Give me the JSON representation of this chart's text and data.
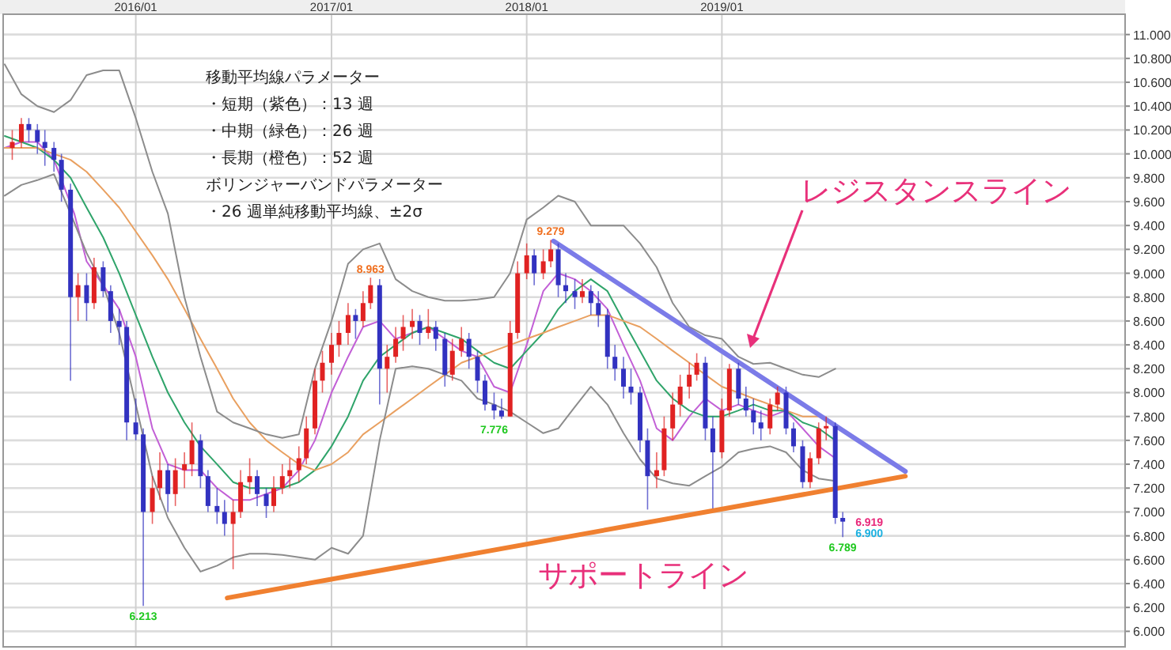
{
  "chart_data": {
    "type": "candlestick",
    "x": [
      "2015-05-15",
      "2015-06-01",
      "2015-06-15",
      "2015-07-01",
      "2015-07-15",
      "2015-08-01",
      "2015-08-15",
      "2015-09-01",
      "2015-09-15",
      "2015-10-01",
      "2015-10-15",
      "2015-11-01",
      "2015-11-15",
      "2015-12-01",
      "2015-12-15",
      "2016-01-01",
      "2016-01-15",
      "2016-02-01",
      "2016-02-15",
      "2016-03-01",
      "2016-03-15",
      "2016-04-01",
      "2016-04-15",
      "2016-05-01",
      "2016-05-15",
      "2016-06-01",
      "2016-06-15",
      "2016-07-01",
      "2016-07-15",
      "2016-08-01",
      "2016-08-15",
      "2016-09-01",
      "2016-09-15",
      "2016-10-01",
      "2016-10-15",
      "2016-11-01",
      "2016-11-15",
      "2016-12-01",
      "2016-12-15",
      "2017-01-01",
      "2017-01-15",
      "2017-02-01",
      "2017-02-15",
      "2017-03-01",
      "2017-03-15",
      "2017-04-01",
      "2017-04-15",
      "2017-05-01",
      "2017-05-15",
      "2017-06-01",
      "2017-06-15",
      "2017-07-01",
      "2017-07-15",
      "2017-08-01",
      "2017-08-15",
      "2017-09-01",
      "2017-09-15",
      "2017-10-01",
      "2017-10-15",
      "2017-11-01",
      "2017-11-15",
      "2017-12-01",
      "2017-12-15",
      "2018-01-01",
      "2018-01-15",
      "2018-02-01",
      "2018-02-15",
      "2018-03-01",
      "2018-03-15",
      "2018-04-01",
      "2018-04-15",
      "2018-05-01",
      "2018-05-15",
      "2018-06-01",
      "2018-06-15",
      "2018-07-01",
      "2018-07-15",
      "2018-08-01",
      "2018-08-15",
      "2018-09-01",
      "2018-09-15",
      "2018-10-01",
      "2018-10-15",
      "2018-11-01",
      "2018-11-15",
      "2018-12-01",
      "2018-12-15",
      "2019-01-01",
      "2019-01-15",
      "2019-02-01",
      "2019-02-15",
      "2019-03-01",
      "2019-03-15",
      "2019-04-01",
      "2019-04-15",
      "2019-05-01",
      "2019-05-15",
      "2019-06-01",
      "2019-06-15",
      "2019-07-01",
      "2019-07-15",
      "2019-08-01",
      "2019-08-15"
    ],
    "ohlc": [
      [
        10.05,
        10.2,
        9.95,
        10.1
      ],
      [
        10.1,
        10.3,
        10.05,
        10.25
      ],
      [
        10.25,
        10.3,
        10.1,
        10.2
      ],
      [
        10.2,
        10.25,
        10.0,
        10.1
      ],
      [
        10.1,
        10.2,
        9.9,
        10.05
      ],
      [
        10.05,
        10.1,
        9.85,
        9.95
      ],
      [
        9.95,
        10.0,
        9.6,
        9.7
      ],
      [
        9.7,
        9.75,
        8.1,
        8.8
      ],
      [
        8.8,
        9.0,
        8.6,
        8.9
      ],
      [
        8.9,
        9.0,
        8.6,
        8.75
      ],
      [
        8.75,
        9.13,
        8.7,
        9.05
      ],
      [
        9.05,
        9.1,
        8.8,
        8.85
      ],
      [
        8.85,
        8.9,
        8.5,
        8.6
      ],
      [
        8.6,
        8.7,
        8.4,
        8.55
      ],
      [
        8.55,
        8.6,
        7.6,
        7.75
      ],
      [
        7.75,
        7.95,
        7.6,
        7.65
      ],
      [
        7.65,
        7.7,
        6.213,
        7.0
      ],
      [
        7.0,
        7.3,
        6.9,
        7.2
      ],
      [
        7.2,
        7.5,
        7.1,
        7.35
      ],
      [
        7.35,
        7.4,
        7.0,
        7.15
      ],
      [
        7.15,
        7.45,
        7.05,
        7.35
      ],
      [
        7.35,
        7.5,
        7.2,
        7.4
      ],
      [
        7.4,
        7.75,
        7.3,
        7.6
      ],
      [
        7.6,
        7.65,
        7.2,
        7.3
      ],
      [
        7.3,
        7.35,
        7.0,
        7.05
      ],
      [
        7.05,
        7.2,
        6.9,
        7.0
      ],
      [
        7.0,
        7.1,
        6.8,
        6.9
      ],
      [
        6.9,
        7.1,
        6.52,
        7.0
      ],
      [
        7.0,
        7.35,
        6.95,
        7.25
      ],
      [
        7.25,
        7.45,
        7.15,
        7.3
      ],
      [
        7.3,
        7.35,
        7.05,
        7.15
      ],
      [
        7.15,
        7.2,
        6.95,
        7.05
      ],
      [
        7.05,
        7.3,
        7.0,
        7.2
      ],
      [
        7.2,
        7.4,
        7.15,
        7.3
      ],
      [
        7.3,
        7.45,
        7.2,
        7.35
      ],
      [
        7.35,
        7.55,
        7.25,
        7.45
      ],
      [
        7.45,
        7.8,
        7.4,
        7.7
      ],
      [
        7.7,
        8.2,
        7.65,
        8.1
      ],
      [
        8.1,
        8.35,
        8.0,
        8.25
      ],
      [
        8.25,
        8.5,
        8.15,
        8.4
      ],
      [
        8.4,
        8.6,
        8.3,
        8.5
      ],
      [
        8.5,
        8.75,
        8.4,
        8.65
      ],
      [
        8.65,
        8.7,
        8.45,
        8.6
      ],
      [
        8.6,
        8.85,
        8.55,
        8.75
      ],
      [
        8.75,
        8.963,
        8.7,
        8.9
      ],
      [
        8.9,
        8.95,
        7.9,
        8.2
      ],
      [
        8.2,
        8.4,
        8.0,
        8.3
      ],
      [
        8.3,
        8.55,
        8.25,
        8.45
      ],
      [
        8.45,
        8.65,
        8.35,
        8.55
      ],
      [
        8.55,
        8.7,
        8.45,
        8.6
      ],
      [
        8.6,
        8.65,
        8.4,
        8.5
      ],
      [
        8.5,
        8.7,
        8.45,
        8.55
      ],
      [
        8.55,
        8.6,
        8.35,
        8.45
      ],
      [
        8.45,
        8.5,
        8.05,
        8.15
      ],
      [
        8.15,
        8.45,
        8.1,
        8.35
      ],
      [
        8.35,
        8.55,
        8.3,
        8.45
      ],
      [
        8.45,
        8.5,
        8.2,
        8.3
      ],
      [
        8.3,
        8.35,
        8.0,
        8.1
      ],
      [
        8.1,
        8.15,
        7.85,
        7.9
      ],
      [
        7.9,
        8.0,
        7.776,
        7.85
      ],
      [
        7.85,
        7.95,
        7.78,
        7.8
      ],
      [
        7.8,
        8.6,
        7.8,
        8.5
      ],
      [
        8.5,
        9.1,
        8.45,
        9.0
      ],
      [
        9.0,
        9.25,
        8.95,
        9.15
      ],
      [
        9.15,
        9.2,
        8.9,
        9.0
      ],
      [
        9.0,
        9.2,
        8.95,
        9.1
      ],
      [
        9.1,
        9.279,
        9.05,
        9.2
      ],
      [
        9.2,
        9.25,
        8.8,
        8.9
      ],
      [
        8.9,
        9.0,
        8.75,
        8.85
      ],
      [
        8.85,
        8.95,
        8.7,
        8.8
      ],
      [
        8.8,
        8.95,
        8.75,
        8.85
      ],
      [
        8.85,
        8.9,
        8.65,
        8.75
      ],
      [
        8.75,
        8.85,
        8.55,
        8.65
      ],
      [
        8.65,
        8.7,
        8.2,
        8.3
      ],
      [
        8.3,
        8.4,
        8.1,
        8.2
      ],
      [
        8.2,
        8.3,
        7.95,
        8.05
      ],
      [
        8.05,
        8.2,
        7.9,
        8.0
      ],
      [
        8.0,
        8.05,
        7.5,
        7.6
      ],
      [
        7.6,
        7.7,
        7.02,
        7.3
      ],
      [
        7.3,
        7.5,
        7.2,
        7.35
      ],
      [
        7.35,
        7.8,
        7.3,
        7.7
      ],
      [
        7.7,
        8.0,
        7.6,
        7.9
      ],
      [
        7.9,
        8.15,
        7.8,
        8.05
      ],
      [
        8.05,
        8.25,
        7.95,
        8.15
      ],
      [
        8.15,
        8.33,
        8.1,
        8.25
      ],
      [
        8.25,
        8.3,
        7.6,
        7.7
      ],
      [
        7.7,
        7.8,
        7.03,
        7.5
      ],
      [
        7.5,
        7.95,
        7.45,
        7.85
      ],
      [
        7.85,
        8.24,
        7.8,
        8.2
      ],
      [
        8.2,
        8.25,
        7.9,
        7.95
      ],
      [
        7.95,
        8.05,
        7.8,
        7.85
      ],
      [
        7.85,
        7.95,
        7.65,
        7.75
      ],
      [
        7.75,
        7.85,
        7.6,
        7.7
      ],
      [
        7.7,
        7.95,
        7.65,
        7.9
      ],
      [
        7.9,
        8.05,
        7.85,
        8.0
      ],
      [
        8.0,
        8.05,
        7.65,
        7.7
      ],
      [
        7.7,
        7.75,
        7.5,
        7.55
      ],
      [
        7.55,
        7.6,
        7.2,
        7.25
      ],
      [
        7.25,
        7.5,
        7.2,
        7.45
      ],
      [
        7.45,
        7.75,
        7.4,
        7.7
      ],
      [
        7.7,
        7.8,
        7.6,
        7.72
      ],
      [
        7.72,
        7.75,
        6.9,
        6.95
      ],
      [
        6.95,
        7.0,
        6.789,
        6.919
      ]
    ],
    "series": [
      {
        "type": "line",
        "color": "#c25fd6",
        "x": [
          "2015-05",
          "2015-06",
          "2015-07",
          "2015-08",
          "2015-09-08",
          "2015-10",
          "2015-11",
          "2015-12",
          "2016-01",
          "2016-02",
          "2016-03",
          "2016-04",
          "2016-05",
          "2016-06",
          "2016-07",
          "2016-08",
          "2016-09",
          "2016-10",
          "2016-11",
          "2016-12",
          "2017-01",
          "2017-02",
          "2017-03",
          "2017-04",
          "2017-05",
          "2017-06",
          "2017-07",
          "2017-08",
          "2017-09",
          "2017-10",
          "2017-11",
          "2017-12",
          "2018-01",
          "2018-02",
          "2018-03",
          "2018-04",
          "2018-05",
          "2018-06",
          "2018-07",
          "2018-08",
          "2018-09",
          "2018-10",
          "2018-11",
          "2018-12",
          "2019-01",
          "2019-02",
          "2019-03",
          "2019-04",
          "2019-05",
          "2019-06",
          "2019-07",
          "2019-08"
        ],
        "values": [
          10.05,
          10.1,
          10.1,
          9.95,
          9.5,
          9.1,
          8.9,
          8.7,
          8.3,
          7.7,
          7.4,
          7.35,
          7.35,
          7.2,
          7.1,
          7.1,
          7.15,
          7.2,
          7.35,
          7.6,
          8.0,
          8.3,
          8.55,
          8.6,
          8.45,
          8.5,
          8.55,
          8.45,
          8.35,
          8.3,
          8.05,
          8.0,
          8.4,
          8.85,
          9.0,
          8.95,
          8.85,
          8.7,
          8.4,
          8.1,
          7.7,
          7.6,
          7.8,
          7.95,
          7.85,
          7.9,
          7.85,
          7.8,
          7.85,
          7.7,
          7.55,
          7.45
        ]
      },
      {
        "type": "line",
        "color": "#2fa46a",
        "x": [
          "2015-05",
          "2015-06",
          "2015-07",
          "2015-08",
          "2015-09",
          "2015-10",
          "2015-11",
          "2015-12",
          "2016-01",
          "2016-02",
          "2016-03",
          "2016-04",
          "2016-05",
          "2016-06",
          "2016-07",
          "2016-08",
          "2016-09",
          "2016-10",
          "2016-11",
          "2016-12",
          "2017-01",
          "2017-02",
          "2017-03",
          "2017-04",
          "2017-05",
          "2017-06",
          "2017-07",
          "2017-08",
          "2017-09",
          "2017-10",
          "2017-11",
          "2017-12",
          "2018-01",
          "2018-02",
          "2018-03",
          "2018-04",
          "2018-05",
          "2018-06",
          "2018-07",
          "2018-08",
          "2018-09",
          "2018-10",
          "2018-11",
          "2018-12",
          "2019-01",
          "2019-02",
          "2019-03",
          "2019-04",
          "2019-05",
          "2019-06",
          "2019-07",
          "2019-08"
        ],
        "values": [
          10.15,
          10.1,
          10.05,
          9.95,
          9.8,
          9.55,
          9.3,
          9.0,
          8.65,
          8.3,
          8.0,
          7.75,
          7.55,
          7.4,
          7.25,
          7.2,
          7.2,
          7.2,
          7.25,
          7.35,
          7.55,
          7.8,
          8.1,
          8.3,
          8.4,
          8.5,
          8.55,
          8.5,
          8.45,
          8.35,
          8.25,
          8.2,
          8.35,
          8.5,
          8.7,
          8.85,
          8.95,
          8.85,
          8.6,
          8.35,
          8.1,
          7.95,
          7.85,
          7.8,
          7.8,
          7.85,
          7.9,
          7.85,
          7.85,
          7.75,
          7.7,
          7.6
        ]
      },
      {
        "type": "line",
        "color": "#e9a060",
        "x": [
          "2015-05",
          "2015-06",
          "2015-07",
          "2015-08",
          "2015-09",
          "2015-10",
          "2015-11",
          "2015-12",
          "2016-01",
          "2016-02",
          "2016-03",
          "2016-04",
          "2016-05",
          "2016-06",
          "2016-07",
          "2016-08",
          "2016-09",
          "2016-10",
          "2016-11",
          "2016-12",
          "2017-01",
          "2017-02",
          "2017-03",
          "2017-04",
          "2017-05",
          "2017-06",
          "2017-07",
          "2017-08",
          "2017-09",
          "2017-10",
          "2017-11",
          "2017-12",
          "2018-01",
          "2018-02",
          "2018-03",
          "2018-04",
          "2018-05",
          "2018-06",
          "2018-07",
          "2018-08",
          "2018-09",
          "2018-10",
          "2018-11",
          "2018-12",
          "2019-01",
          "2019-02",
          "2019-03",
          "2019-04",
          "2019-05",
          "2019-06",
          "2019-07"
        ],
        "values": [
          10.05,
          10.05,
          10.05,
          10.0,
          9.95,
          9.85,
          9.7,
          9.55,
          9.35,
          9.15,
          8.95,
          8.7,
          8.45,
          8.2,
          7.95,
          7.75,
          7.6,
          7.5,
          7.4,
          7.35,
          7.4,
          7.5,
          7.65,
          7.75,
          7.85,
          7.95,
          8.05,
          8.15,
          8.25,
          8.3,
          8.35,
          8.4,
          8.45,
          8.5,
          8.55,
          8.6,
          8.65,
          8.65,
          8.6,
          8.55,
          8.45,
          8.35,
          8.25,
          8.15,
          8.05,
          8.0,
          7.95,
          7.9,
          7.85,
          7.8,
          7.8
        ]
      },
      {
        "type": "line",
        "color": "#8c8c8c",
        "x": [
          "2015-05",
          "2015-06",
          "2015-07",
          "2015-08",
          "2015-09",
          "2015-10",
          "2015-11",
          "2015-12",
          "2016-01",
          "2016-02",
          "2016-03",
          "2016-04",
          "2016-05",
          "2016-06",
          "2016-07",
          "2016-08",
          "2016-09",
          "2016-10",
          "2016-11",
          "2016-12",
          "2017-01",
          "2017-02",
          "2017-03",
          "2017-04",
          "2017-05",
          "2017-06",
          "2017-07",
          "2017-08",
          "2017-09",
          "2017-10",
          "2017-11",
          "2017-12",
          "2018-01",
          "2018-02",
          "2018-03",
          "2018-04",
          "2018-05",
          "2018-06",
          "2018-07",
          "2018-08",
          "2018-09",
          "2018-10",
          "2018-11",
          "2018-12",
          "2019-01",
          "2019-02",
          "2019-03",
          "2019-04",
          "2019-05",
          "2019-06",
          "2019-07",
          "2019-08"
        ],
        "values": [
          10.75,
          10.5,
          10.4,
          10.35,
          10.45,
          10.66,
          10.7,
          10.7,
          10.3,
          9.85,
          9.5,
          8.8,
          8.3,
          7.84,
          7.75,
          7.7,
          7.65,
          7.62,
          7.65,
          8.2,
          8.6,
          9.08,
          9.2,
          9.25,
          8.95,
          8.85,
          8.8,
          8.77,
          8.77,
          8.78,
          8.8,
          9.0,
          9.45,
          9.55,
          9.65,
          9.6,
          9.4,
          9.4,
          9.4,
          9.25,
          9.05,
          8.75,
          8.55,
          8.48,
          8.45,
          8.3,
          8.24,
          8.25,
          8.2,
          8.15,
          8.13,
          8.2
        ]
      },
      {
        "type": "line",
        "color": "#8c8c8c",
        "x": [
          "2015-05",
          "2015-06",
          "2015-07",
          "2015-08",
          "2015-09",
          "2015-10",
          "2015-11",
          "2015-12",
          "2016-01",
          "2016-02",
          "2016-03",
          "2016-04",
          "2016-05",
          "2016-06",
          "2016-07",
          "2016-08",
          "2016-09",
          "2016-10",
          "2016-11",
          "2016-12",
          "2017-01",
          "2017-02",
          "2017-03",
          "2017-04",
          "2017-05",
          "2017-06",
          "2017-07",
          "2017-08",
          "2017-09",
          "2017-10",
          "2017-11",
          "2017-12",
          "2018-01",
          "2018-02",
          "2018-03",
          "2018-04",
          "2018-05",
          "2018-06",
          "2018-07",
          "2018-08",
          "2018-09",
          "2018-10",
          "2018-11",
          "2018-12",
          "2019-01",
          "2019-02",
          "2019-03",
          "2019-04",
          "2019-05",
          "2019-06",
          "2019-07",
          "2019-08"
        ],
        "values": [
          9.65,
          9.74,
          9.78,
          9.83,
          9.5,
          9.17,
          8.9,
          8.5,
          7.9,
          7.3,
          6.95,
          6.7,
          6.5,
          6.55,
          6.62,
          6.65,
          6.65,
          6.64,
          6.62,
          6.6,
          6.7,
          6.65,
          6.8,
          7.6,
          8.2,
          8.22,
          8.2,
          8.15,
          8.1,
          7.95,
          7.9,
          7.84,
          7.75,
          7.66,
          7.7,
          7.88,
          8.05,
          7.9,
          7.66,
          7.44,
          7.28,
          7.24,
          7.22,
          7.3,
          7.38,
          7.5,
          7.53,
          7.55,
          7.5,
          7.35,
          7.28,
          7.26
        ]
      },
      {
        "type": "line",
        "color": "#7b7be8",
        "x": [
          "2018-02-20",
          "2019-12-10"
        ],
        "values": [
          9.27,
          7.34
        ]
      },
      {
        "type": "line",
        "color": "#f08030",
        "x": [
          "2016-06-20",
          "2019-12-10"
        ],
        "values": [
          6.28,
          7.3
        ]
      }
    ],
    "xlim": [
      "2015-04-28",
      "2021-01-24"
    ],
    "xticks": [
      {
        "value": "2016-01-01",
        "label": "2016/01"
      },
      {
        "value": "2017-01-01",
        "label": "2017/01"
      },
      {
        "value": "2018-01-01",
        "label": "2018/01"
      },
      {
        "value": "2019-01-01",
        "label": "2019/01"
      }
    ],
    "ylim": [
      5.87,
      11.17
    ],
    "yticks": [
      {
        "value": 6,
        "label": "6.000"
      },
      {
        "value": 6.2,
        "label": "6.200"
      },
      {
        "value": 6.4,
        "label": "6.400"
      },
      {
        "value": 6.6,
        "label": "6.600"
      },
      {
        "value": 6.8,
        "label": "6.800"
      },
      {
        "value": 7,
        "label": "7.000"
      },
      {
        "value": 7.2,
        "label": "7.200"
      },
      {
        "value": 7.4,
        "label": "7.400"
      },
      {
        "value": 7.6,
        "label": "7.600"
      },
      {
        "value": 7.8,
        "label": "7.800"
      },
      {
        "value": 8,
        "label": "8.000"
      },
      {
        "value": 8.2,
        "label": "8.200"
      },
      {
        "value": 8.4,
        "label": "8.400"
      },
      {
        "value": 8.6,
        "label": "8.600"
      },
      {
        "value": 8.8,
        "label": "8.800"
      },
      {
        "value": 9,
        "label": "9.000"
      },
      {
        "value": 9.2,
        "label": "9.200"
      },
      {
        "value": 9.4,
        "label": "9.400"
      },
      {
        "value": 9.6,
        "label": "9.600"
      },
      {
        "value": 9.8,
        "label": "9.800"
      },
      {
        "value": 10,
        "label": "10.000"
      },
      {
        "value": 10.2,
        "label": "10.200"
      },
      {
        "value": 10.4,
        "label": "10.400"
      },
      {
        "value": 10.6,
        "label": "10.600"
      },
      {
        "value": 10.8,
        "label": "10.800"
      },
      {
        "value": 11,
        "label": "11.000"
      }
    ],
    "grid": true,
    "annotations": [
      "移動平均線パラメーター",
      "・短期（紫色）：13 週",
      "・中期（緑色）：26 週",
      "・長期（橙色）：52 週",
      "ボリンジャーバンドパラメーター",
      "・26 週単純移動平均線、±2σ",
      "サポートライン",
      "レジスタンスライン",
      {
        "text": "8.963",
        "x": "2017-03-15",
        "y": 8.963
      },
      {
        "text": "9.279",
        "x": "2018-02-15",
        "y": 9.279
      },
      {
        "text": "6.213",
        "x": "2016-01-15",
        "y": 6.213
      },
      {
        "text": "7.776",
        "x": "2017-11-01",
        "y": 7.776
      },
      {
        "text": "6.789",
        "x": "2019-08-15",
        "y": 6.789
      },
      {
        "text": "6.919",
        "x": "2019-08-15",
        "y": 6.919
      },
      {
        "text": "6.900",
        "x": "2019-08-15",
        "y": 6.9
      }
    ]
  }
}
